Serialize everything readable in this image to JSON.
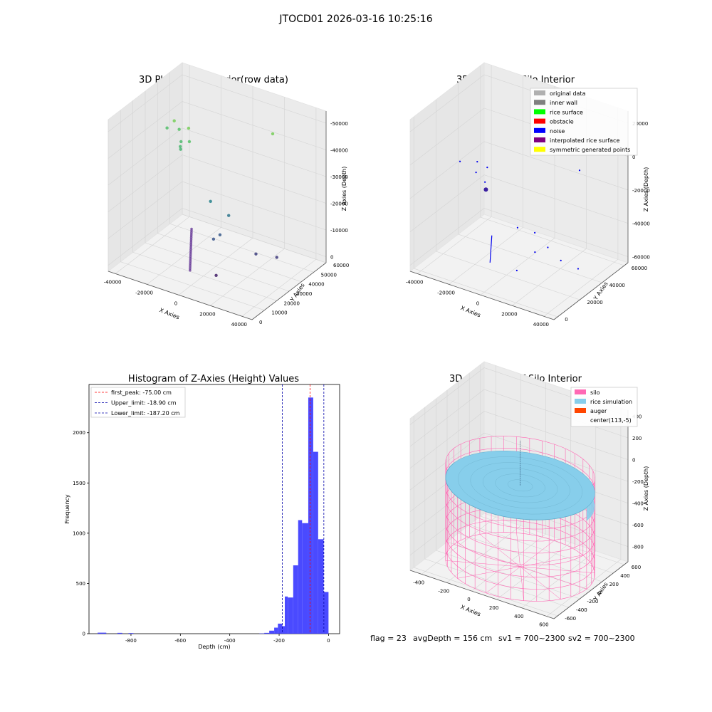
{
  "suptitle": "JTOCD01 2026-03-16 10:25:16",
  "status": {
    "flag": "flag = 23",
    "avg_depth": "avgDepth = 156 cm",
    "sv1": "sv1 = 700~2300",
    "sv2": "sv2 = 700~2300"
  },
  "colors": {
    "hist_bar": "#4040ff",
    "first_peak": "#ff0000",
    "limit": "#0000aa",
    "silo": "#ff69b4",
    "rice": "#87ceeb",
    "auger": "#ff4500",
    "noise": "#0000ee"
  },
  "chart_data": [
    {
      "type": "scatter",
      "projection": "3d",
      "title": "3D Plot of Silo Interior(row data)",
      "xlabel": "X Axies",
      "ylabel": "Y Axies",
      "zlabel": "Z Axies (Depth)",
      "xticks": [
        "-40000",
        "-20000",
        "0",
        "20000",
        "40000"
      ],
      "yticks": [
        "0",
        "10000",
        "20000",
        "30000",
        "40000",
        "50000",
        "60000"
      ],
      "zticks": [
        "0",
        "-10000",
        "-20000",
        "-30000",
        "-40000",
        "-50000"
      ],
      "xlim": [
        -45000,
        50000
      ],
      "ylim": [
        0,
        65000
      ],
      "zlim": [
        -55000,
        2000
      ],
      "colormap": "viridis",
      "points": [
        {
          "x": -40000,
          "y": 45000,
          "z": -15000
        },
        {
          "x": -33000,
          "y": 42000,
          "z": -10000
        },
        {
          "x": -32000,
          "y": 45000,
          "z": -14000
        },
        {
          "x": -27000,
          "y": 40000,
          "z": -16000
        },
        {
          "x": -26000,
          "y": 38000,
          "z": -17000
        },
        {
          "x": -25000,
          "y": 37000,
          "z": -17500
        },
        {
          "x": -22000,
          "y": 40000,
          "z": -10000
        },
        {
          "x": -20000,
          "y": 38000,
          "z": -14000
        },
        {
          "x": 20000,
          "y": 58000,
          "z": -10000
        },
        {
          "x": 0,
          "y": 30000,
          "z": -30000
        },
        {
          "x": 12000,
          "y": 30000,
          "z": -33000
        },
        {
          "x": 10000,
          "y": 25000,
          "z": -39000
        },
        {
          "x": 8000,
          "y": 22000,
          "z": -40000
        },
        {
          "x": 30000,
          "y": 30000,
          "z": -44000
        },
        {
          "x": 40000,
          "y": 35000,
          "z": -45000
        },
        {
          "x": 15000,
          "y": 15000,
          "z": -50000
        }
      ],
      "line_segment": {
        "from": {
          "x": -5000,
          "y": 20000,
          "z": -38000
        },
        "to": {
          "x": 0,
          "y": 12000,
          "z": -50000
        }
      }
    },
    {
      "type": "scatter",
      "projection": "3d",
      "title": "3D classify of Silo Interior",
      "xlabel": "X Axies",
      "ylabel": "Y Axies",
      "zlabel": "Z Axies (Depth)",
      "xticks": [
        "-40000",
        "-20000",
        "0",
        "20000",
        "40000"
      ],
      "yticks": [
        "0",
        "20000",
        "40000",
        "60000"
      ],
      "zticks": [
        "20000",
        "0",
        "-20000",
        "-40000",
        "-60000"
      ],
      "xlim": [
        -45000,
        50000
      ],
      "ylim": [
        0,
        70000
      ],
      "zlim": [
        -70000,
        25000
      ],
      "legend": [
        {
          "label": "original data",
          "color": "#b0b0b0"
        },
        {
          "label": "inner wall",
          "color": "#808080"
        },
        {
          "label": "rice surface",
          "color": "#00ff00"
        },
        {
          "label": "obstacle",
          "color": "#ff0000"
        },
        {
          "label": "noise",
          "color": "#0000ff"
        },
        {
          "label": "interpolated rice surface",
          "color": "#800080"
        },
        {
          "label": "symmetric generated points",
          "color": "#ffff00"
        }
      ],
      "legend_position": "upper right",
      "points": [
        {
          "x": -40000,
          "y": 40000,
          "z": -20000
        },
        {
          "x": -30000,
          "y": 42000,
          "z": -18000
        },
        {
          "x": -28000,
          "y": 38000,
          "z": -22000
        },
        {
          "x": -22000,
          "y": 40000,
          "z": -18000
        },
        {
          "x": -20000,
          "y": 35000,
          "z": -24000
        },
        {
          "x": -18000,
          "y": 33000,
          "z": -27000
        },
        {
          "x": 25000,
          "y": 60000,
          "z": -15000
        },
        {
          "x": 5000,
          "y": 30000,
          "z": -42000
        },
        {
          "x": 15000,
          "y": 32000,
          "z": -43000
        },
        {
          "x": 25000,
          "y": 30000,
          "z": -48000
        },
        {
          "x": 20000,
          "y": 25000,
          "z": -50000
        },
        {
          "x": 35000,
          "y": 28000,
          "z": -52000
        },
        {
          "x": 45000,
          "y": 30000,
          "z": -55000
        },
        {
          "x": 15000,
          "y": 15000,
          "z": -58000
        }
      ],
      "line_segment": {
        "from": {
          "x": -5000,
          "y": 20000,
          "z": -45000
        },
        "to": {
          "x": -2000,
          "y": 14000,
          "z": -58000
        }
      }
    },
    {
      "type": "bar",
      "subtype": "histogram",
      "title": "Histogram of Z-Axies (Height) Values",
      "xlabel": "Depth (cm)",
      "ylabel": "Frequency",
      "xlim": [
        -970,
        45
      ],
      "ylim": [
        0,
        2480
      ],
      "xticks": [
        "-800",
        "-600",
        "-400",
        "-200",
        "0"
      ],
      "yticks": [
        "0",
        "500",
        "1000",
        "1500",
        "2000"
      ],
      "bins": [
        {
          "x0": -935,
          "x1": -900,
          "count": 10
        },
        {
          "x0": -855,
          "x1": -835,
          "count": 8
        },
        {
          "x0": -810,
          "x1": -790,
          "count": 6
        },
        {
          "x0": -280,
          "x1": -260,
          "count": 3
        },
        {
          "x0": -260,
          "x1": -240,
          "count": 8
        },
        {
          "x0": -240,
          "x1": -220,
          "count": 30
        },
        {
          "x0": -220,
          "x1": -205,
          "count": 60
        },
        {
          "x0": -205,
          "x1": -187,
          "count": 100
        },
        {
          "x0": -187,
          "x1": -177,
          "count": 75
        },
        {
          "x0": -177,
          "x1": -165,
          "count": 370
        },
        {
          "x0": -165,
          "x1": -143,
          "count": 360
        },
        {
          "x0": -143,
          "x1": -123,
          "count": 680
        },
        {
          "x0": -123,
          "x1": -107,
          "count": 1130
        },
        {
          "x0": -107,
          "x1": -82,
          "count": 1100
        },
        {
          "x0": -82,
          "x1": -62,
          "count": 2350
        },
        {
          "x0": -62,
          "x1": -42,
          "count": 1810
        },
        {
          "x0": -42,
          "x1": -20,
          "count": 940
        },
        {
          "x0": -20,
          "x1": 0,
          "count": 415
        }
      ],
      "vlines": [
        {
          "label": "first_peak: -75.00 cm",
          "x": -75.0,
          "color": "#ff0000"
        },
        {
          "label": "Upper_limit: -18.90 cm",
          "x": -18.9,
          "color": "#0000aa"
        },
        {
          "label": "Lower_limit: -187.20 cm",
          "x": -187.2,
          "color": "#0000aa"
        }
      ],
      "legend_position": "upper left"
    },
    {
      "type": "surface",
      "projection": "3d",
      "title": "3D simulation of Silo Interior",
      "xlabel": "X Axies",
      "ylabel": "Y Axies",
      "zlabel": "Z Axies (Depth)",
      "xticks": [
        "-400",
        "-200",
        "0",
        "200",
        "400",
        "600"
      ],
      "yticks": [
        "-600",
        "-400",
        "-200",
        "0",
        "200",
        "400",
        "600"
      ],
      "zticks": [
        "400",
        "200",
        "0",
        "-200",
        "-400",
        "-600",
        "-800"
      ],
      "xlim": [
        -550,
        750
      ],
      "ylim": [
        -650,
        650
      ],
      "zlim": [
        -900,
        480
      ],
      "legend": [
        {
          "label": "silo",
          "color": "#ff69b4"
        },
        {
          "label": "rice simulation",
          "color": "#87ceeb"
        },
        {
          "label": "auger",
          "color": "#ff4500"
        },
        {
          "label": "center(113,-5)",
          "color": ""
        }
      ],
      "legend_position": "upper right",
      "silo": {
        "center_x": 113,
        "center_y": -5,
        "radius": 600,
        "z_top": -25,
        "z_bottom": -900
      },
      "rice_surface_z": -160
    }
  ]
}
